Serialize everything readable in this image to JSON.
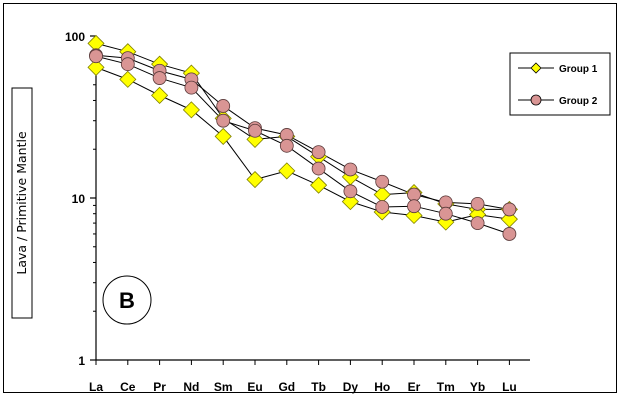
{
  "chart_data": {
    "type": "line",
    "y_scale": "log",
    "ylim": [
      1,
      100
    ],
    "y_ticks": [
      "1",
      "10",
      "100"
    ],
    "ylabel": "Lava / Primitive Mantle",
    "xlabel": "",
    "categories": [
      "La",
      "Ce",
      "Pr",
      "Nd",
      "Sm",
      "Eu",
      "Gd",
      "Tb",
      "Dy",
      "Ho",
      "Er",
      "Tm",
      "Yb",
      "Lu"
    ],
    "panel_label": "B",
    "legend_position": "top-right",
    "grid": false,
    "series": [
      {
        "name": "Group 1",
        "group": "Group 1",
        "marker": "diamond",
        "color": "#ffff00",
        "values": [
          90,
          80,
          67,
          59,
          31,
          23,
          24,
          18,
          13.5,
          10.5,
          10.8,
          9.2,
          8.5,
          8.5
        ]
      },
      {
        "name": "",
        "group": "Group 1",
        "marker": "diamond",
        "color": "#ffff00",
        "values": [
          64,
          54,
          43,
          35,
          24,
          13,
          14.7,
          12,
          9.5,
          8.2,
          7.8,
          7.1,
          7.9,
          7.4
        ]
      },
      {
        "name": "Group 2",
        "group": "Group 2",
        "marker": "circle",
        "color": "#d99594",
        "values": [
          76,
          73,
          61,
          54,
          37,
          27,
          24.5,
          19.2,
          15,
          12.6,
          10.5,
          9.4,
          9.2,
          8.5
        ]
      },
      {
        "name": "",
        "group": "Group 2",
        "marker": "circle",
        "color": "#d99594",
        "values": [
          75,
          67,
          55,
          48,
          30,
          26,
          21,
          15.2,
          11,
          8.8,
          8.9,
          8.0,
          7.0,
          6.0
        ]
      }
    ]
  }
}
